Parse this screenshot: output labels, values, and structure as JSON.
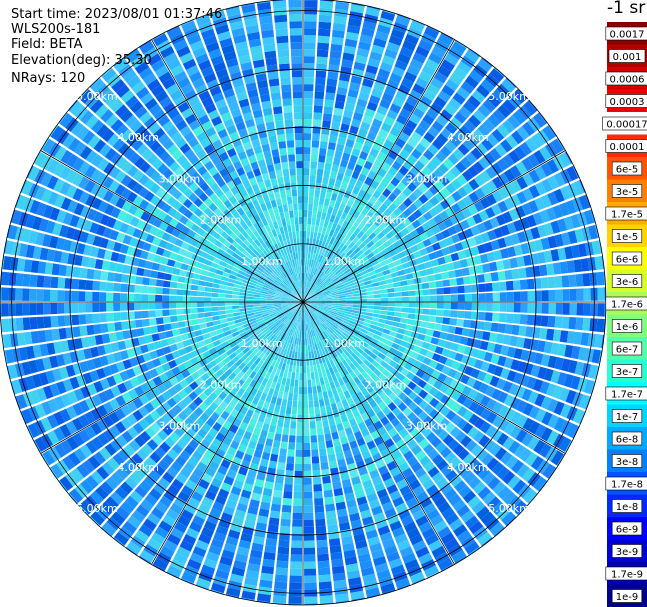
{
  "header": {
    "start_time": "Start time: 2023/08/01 01:37:46",
    "instrument": "WLS200s-181",
    "field": "Field: BETA",
    "elevation": "Elevation(deg): 35.30",
    "nrays": "NRays: 120"
  },
  "colorbar": {
    "unit_label": "-1 sr",
    "labels": [
      "0.0017",
      "0.001",
      "0.0006",
      "0.0003",
      "0.00017",
      "0.0001",
      "6e-5",
      "3e-5",
      "1.7e-5",
      "1e-5",
      "6e-6",
      "3e-6",
      "1.7e-6",
      "1e-6",
      "6e-7",
      "3e-7",
      "1.7e-7",
      "1e-7",
      "6e-8",
      "3e-8",
      "1.7e-8",
      "1e-8",
      "6e-9",
      "3e-9",
      "1.7e-9",
      "1e-9"
    ],
    "colors": [
      "#8b0000",
      "#b00000",
      "#d40000",
      "#f00000",
      "#ffffff",
      "#ff2a00",
      "#ff5500",
      "#ff8000",
      "#ffaa00",
      "#ffd400",
      "#ffff00",
      "#d4ff2a",
      "#aaff55",
      "#80ff80",
      "#55ffaa",
      "#2affd4",
      "#00ffff",
      "#00d4ff",
      "#00aaff",
      "#0080ff",
      "#0055ff",
      "#002aff",
      "#0000ff",
      "#0000d4",
      "#0000aa",
      "#00008b"
    ]
  },
  "chart_data": {
    "type": "heatmap",
    "projection": "polar",
    "field": "BETA",
    "n_rays": 120,
    "range_max_km": 5.2,
    "range_rings_km": [
      1.0,
      2.0,
      3.0,
      4.0,
      5.0
    ],
    "ring_labels": [
      "1.00km",
      "2.00km",
      "3.00km",
      "4.00km",
      "5.00km"
    ],
    "spoke_angles_deg": [
      0,
      30,
      60,
      90,
      120,
      150,
      180,
      210,
      240,
      270,
      300,
      330
    ],
    "value_range": [
      1e-09,
      0.0017
    ],
    "value_scale": "log",
    "typical_values": [
      {
        "range_km": [
          0.0,
          1.0
        ],
        "value": 1.7e-07
      },
      {
        "range_km": [
          1.0,
          2.3
        ],
        "value": 3e-07
      },
      {
        "range_km": [
          2.3,
          3.5
        ],
        "value": 6e-08
      },
      {
        "range_km": [
          3.5,
          5.2
        ],
        "value": 3e-08
      }
    ]
  }
}
